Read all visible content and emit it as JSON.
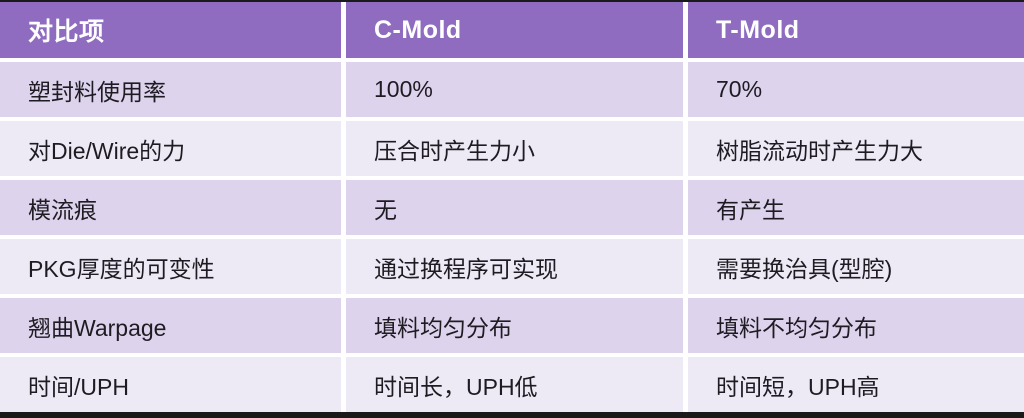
{
  "colors": {
    "header_bg": "#8F6CC0",
    "header_text": "#FFFFFF",
    "row_dark_bg": "#DDD3EC",
    "row_light_bg": "#EDEAF5",
    "cell_text": "#1E1B22",
    "gap": "#FFFFFF",
    "edge_bar": "#1A1A1A"
  },
  "table": {
    "headers": [
      "对比项",
      "C-Mold",
      "T-Mold"
    ],
    "rows": [
      {
        "item": "塑封料使用率",
        "c_mold": "100%",
        "t_mold": "70%"
      },
      {
        "item": "对Die/Wire的力",
        "c_mold": "压合时产生力小",
        "t_mold": "树脂流动时产生力大"
      },
      {
        "item": "模流痕",
        "c_mold": "无",
        "t_mold": "有产生"
      },
      {
        "item": "PKG厚度的可变性",
        "c_mold": "通过换程序可实现",
        "t_mold": "需要换治具(型腔)"
      },
      {
        "item": "翘曲Warpage",
        "c_mold": "填料均匀分布",
        "t_mold": "填料不均匀分布"
      },
      {
        "item": "时间/UPH",
        "c_mold": "时间长，UPH低",
        "t_mold": "时间短，UPH高"
      }
    ]
  }
}
